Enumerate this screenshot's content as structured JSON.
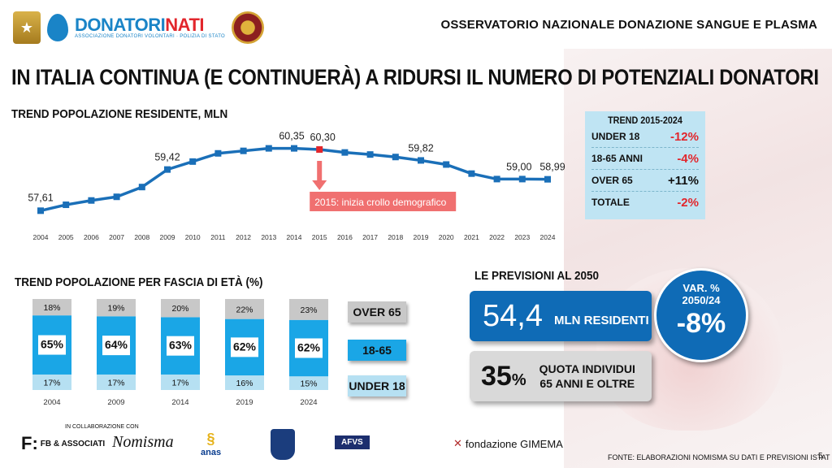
{
  "header": {
    "logo_text_a": "DONATORI",
    "logo_text_b": "NATI",
    "logo_sub": "ASSOCIAZIONE DONATORI VOLONTARI · POLIZIA DI STATO",
    "observatory": "OSSERVATORIO NAZIONALE DONAZIONE SANGUE E PLASMA"
  },
  "title": "IN ITALIA CONTINUA (E CONTINUERÀ) A RIDURSI IL NUMERO DI POTENZIALI DONATORI",
  "line_section_title": "TREND POPOLAZIONE RESIDENTE, MLN",
  "bar_section_title": "TREND POPOLAZIONE PER FASCIA DI ETÀ (%)",
  "forecast_title": "LE PREVISIONI AL 2050",
  "annotation": "2015: inizia crollo demografico",
  "trend_box": {
    "title": "TREND 2015-2024",
    "rows": [
      {
        "label": "UNDER 18",
        "value": "-12%",
        "kind": "neg"
      },
      {
        "label": "18-65 ANNI",
        "value": "-4%",
        "kind": "neg"
      },
      {
        "label": "OVER 65",
        "value": "+11%",
        "kind": "pos"
      },
      {
        "label": "TOTALE",
        "value": "-2%",
        "kind": "neg"
      }
    ]
  },
  "legend": {
    "over": "OVER 65",
    "mid": "18-65",
    "under": "UNDER 18"
  },
  "forecast": {
    "residents_value": "54,4",
    "residents_label": "MLN RESIDENTI",
    "quota_value": "35",
    "quota_unit": "%",
    "quota_label_1": "QUOTA INDIVIDUI",
    "quota_label_2": "65 ANNI E OLTRE",
    "var_label_1": "VAR. %",
    "var_label_2": "2050/24",
    "var_value": "-8%"
  },
  "footer": {
    "collab": "IN COLLABORAZIONE CON",
    "partners": [
      "FB & ASSOCIATI",
      "Nomisma",
      "anas",
      "AFVS",
      "fondazione GIMEMA"
    ],
    "source": "FONTE: ELABORAZIONI NOMISMA SU DATI E PREVISIONI ISTAT",
    "page": "5"
  },
  "colors": {
    "line": "#1a6fb8",
    "highlight": "#e2262c",
    "over": "#c8c8c8",
    "mid": "#1aa6e6",
    "under": "#b6e0f2",
    "dark_blue": "#0f6bb6"
  },
  "chart_data": [
    {
      "type": "line",
      "title": "TREND POPOLAZIONE RESIDENTE, MLN",
      "x": [
        "2004",
        "2005",
        "2006",
        "2007",
        "2008",
        "2009",
        "2010",
        "2011",
        "2012",
        "2013",
        "2014",
        "2015",
        "2016",
        "2017",
        "2018",
        "2019",
        "2020",
        "2021",
        "2022",
        "2023",
        "2024"
      ],
      "values": [
        57.61,
        57.87,
        58.06,
        58.22,
        58.65,
        59.42,
        59.77,
        60.13,
        60.24,
        60.35,
        60.35,
        60.3,
        60.17,
        60.08,
        59.97,
        59.82,
        59.64,
        59.24,
        59.0,
        59.0,
        58.99
      ],
      "labels": {
        "2004": "57,61",
        "2009": "59,42",
        "2014": "60,35",
        "2015": "60,30",
        "2019": "59,82",
        "2023": "59,00",
        "2024": "58,99"
      },
      "highlight": "2015",
      "ylim": [
        57.3,
        60.8
      ]
    },
    {
      "type": "bar",
      "stacked": true,
      "title": "TREND POPOLAZIONE PER FASCIA DI ETÀ (%)",
      "categories": [
        "2004",
        "2009",
        "2014",
        "2019",
        "2024"
      ],
      "series": [
        {
          "name": "UNDER 18",
          "values": [
            17,
            17,
            17,
            16,
            15
          ]
        },
        {
          "name": "18-65",
          "values": [
            65,
            64,
            63,
            62,
            62
          ]
        },
        {
          "name": "OVER 65",
          "values": [
            18,
            19,
            20,
            22,
            23
          ]
        }
      ]
    }
  ]
}
